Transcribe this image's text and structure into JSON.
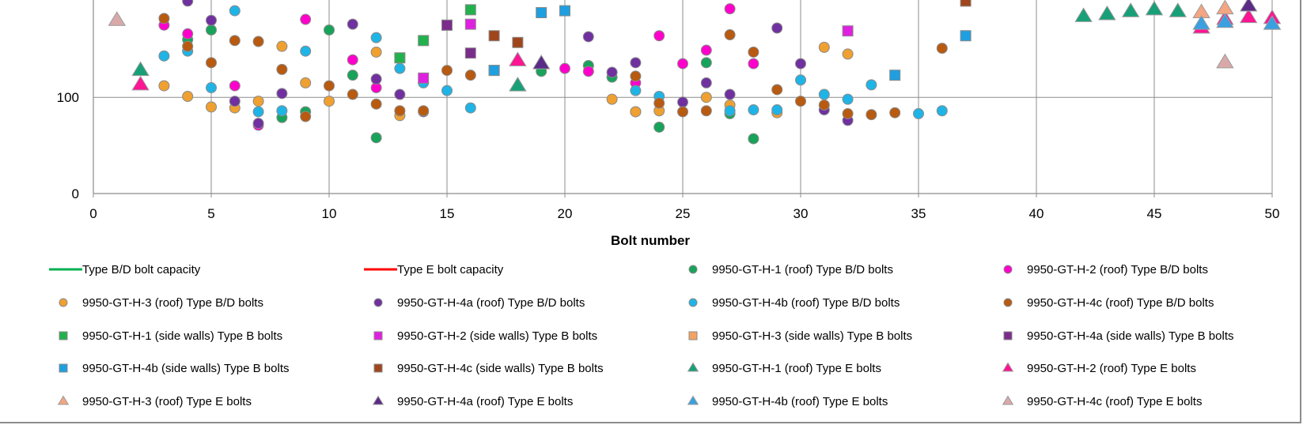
{
  "chart_data": {
    "type": "scatter",
    "title": "",
    "xlabel": "Bolt number",
    "ylabel": "",
    "xlim": [
      0,
      50
    ],
    "ylim_visible": [
      0,
      232
    ],
    "x_ticks": [
      "0",
      "5",
      "10",
      "15",
      "20",
      "25",
      "30",
      "35",
      "40",
      "45",
      "50"
    ],
    "y_ticks": [
      "0",
      "100"
    ],
    "grid": "on",
    "legend_position": "bottom",
    "series": [
      {
        "name": "Type B/D bolt capacity",
        "marker": "line",
        "color": "#00b050",
        "x": [],
        "y": []
      },
      {
        "name": "Type E bolt capacity",
        "marker": "line",
        "color": "#ff0000",
        "x": [],
        "y": []
      },
      {
        "name": "9950-GT-H-1 (roof) Type B/D bolts",
        "marker": "circle",
        "color": "#17a35a",
        "x": [
          4,
          5,
          8,
          9,
          10,
          11,
          12,
          19,
          21,
          22,
          23,
          24,
          26,
          27,
          28
        ],
        "y": [
          160,
          170,
          79,
          85,
          170,
          123,
          58,
          127,
          133,
          121,
          85,
          69,
          136,
          83,
          57
        ]
      },
      {
        "name": "9950-GT-H-2 (roof) Type B/D bolts",
        "marker": "circle",
        "color": "#ff00cc",
        "x": [
          3,
          4,
          6,
          7,
          9,
          11,
          12,
          20,
          21,
          23,
          24,
          25,
          26,
          27,
          28
        ],
        "y": [
          175,
          166,
          112,
          71,
          181,
          139,
          110,
          130,
          127,
          115,
          164,
          135,
          149,
          192,
          135
        ]
      },
      {
        "name": "9950-GT-H-3 (roof) Type B/D bolts",
        "marker": "circle",
        "color": "#f0a030",
        "x": [
          3,
          4,
          5,
          6,
          7,
          8,
          9,
          10,
          12,
          13,
          22,
          23,
          24,
          26,
          27,
          29,
          31,
          32
        ],
        "y": [
          112,
          101,
          90,
          89,
          96,
          153,
          115,
          96,
          147,
          81,
          98,
          85,
          86,
          100,
          92,
          84,
          152,
          145
        ]
      },
      {
        "name": "9950-GT-H-4a (roof) Type B/D bolts",
        "marker": "circle",
        "color": "#7030a0",
        "x": [
          4,
          5,
          6,
          7,
          8,
          11,
          12,
          13,
          14,
          21,
          22,
          23,
          25,
          26,
          27,
          29,
          30,
          31,
          32
        ],
        "y": [
          200,
          180,
          96,
          73,
          104,
          176,
          119,
          103,
          85,
          163,
          126,
          136,
          95,
          115,
          103,
          172,
          135,
          87,
          76
        ]
      },
      {
        "name": "9950-GT-H-4b (roof) Type B/D bolts",
        "marker": "circle",
        "color": "#1fb4e6",
        "x": [
          3,
          4,
          5,
          6,
          7,
          8,
          9,
          12,
          13,
          14,
          15,
          16,
          23,
          24,
          27,
          28,
          29,
          30,
          31,
          32,
          33,
          35,
          36
        ],
        "y": [
          143,
          148,
          110,
          190,
          85,
          86,
          148,
          162,
          130,
          115,
          107,
          89,
          107,
          101,
          86,
          87,
          87,
          118,
          103,
          98,
          113,
          83,
          86
        ]
      },
      {
        "name": "9950-GT-H-4c (roof) Type B/D bolts",
        "marker": "circle",
        "color": "#b85a10",
        "x": [
          3,
          4,
          5,
          6,
          7,
          8,
          9,
          10,
          11,
          12,
          13,
          14,
          15,
          16,
          23,
          24,
          25,
          26,
          27,
          28,
          29,
          30,
          31,
          32,
          33,
          34,
          36
        ],
        "y": [
          182,
          153,
          136,
          159,
          158,
          129,
          80,
          112,
          103,
          93,
          86,
          86,
          128,
          123,
          122,
          94,
          85,
          86,
          165,
          147,
          108,
          96,
          92,
          83,
          82,
          84,
          151
        ]
      },
      {
        "name": "9950-GT-H-1  (side walls) Type B bolts",
        "marker": "square",
        "color": "#22b14c",
        "x": [
          13,
          14,
          16
        ],
        "y": [
          141,
          159,
          191
        ]
      },
      {
        "name": "9950-GT-H-2 (side walls) Type B bolts",
        "marker": "square",
        "color": "#e020e0",
        "x": [
          14,
          16,
          32
        ],
        "y": [
          120,
          176,
          169
        ]
      },
      {
        "name": "9950-GT-H-3 (side walls) Type B bolts",
        "marker": "square",
        "color": "#f4a261",
        "x": [
          15,
          17
        ],
        "y": [
          175,
          128
        ]
      },
      {
        "name": "9950-GT-H-4a (side walls) Type B bolts",
        "marker": "square",
        "color": "#7b2d8b",
        "x": [
          15,
          16
        ],
        "y": [
          175,
          146
        ]
      },
      {
        "name": "9950-GT-H-4b (side walls) Type B bolts",
        "marker": "square",
        "color": "#1f9fe0",
        "x": [
          17,
          19,
          20,
          34,
          37
        ],
        "y": [
          128,
          188,
          190,
          123,
          164
        ]
      },
      {
        "name": "9950-GT-H-4c (side walls) Type B bolts",
        "marker": "square",
        "color": "#a0461c",
        "x": [
          17,
          18,
          37
        ],
        "y": [
          164,
          157,
          200
        ]
      },
      {
        "name": "9950-GT-H-1  (roof) Type E bolts",
        "marker": "triangle",
        "color": "#17a077",
        "x": [
          2,
          18,
          42,
          43,
          44,
          45,
          46,
          50
        ],
        "y": [
          128,
          112,
          184,
          186,
          189,
          191,
          189,
          176
        ]
      },
      {
        "name": "9950-GT-H-2 (roof) Type E bolts",
        "marker": "triangle",
        "color": "#ff1493",
        "x": [
          2,
          18,
          47,
          48,
          49,
          50
        ],
        "y": [
          113,
          138,
          172,
          181,
          183,
          182
        ]
      },
      {
        "name": "9950-GT-H-3 (roof) Type E bolts",
        "marker": "triangle",
        "color": "#f4a582",
        "x": [
          47,
          48
        ],
        "y": [
          188,
          192
        ]
      },
      {
        "name": "9950-GT-H-4a (roof) Type E bolts",
        "marker": "triangle",
        "color": "#5b2a86",
        "x": [
          19,
          49
        ],
        "y": [
          135,
          195
        ]
      },
      {
        "name": "9950-GT-H-4b (roof) Type E bolts",
        "marker": "triangle",
        "color": "#3aa0e0",
        "x": [
          47,
          48,
          50
        ],
        "y": [
          176,
          178,
          176
        ]
      },
      {
        "name": "9950-GT-H-4c (roof) Type E bolts",
        "marker": "triangle",
        "color": "#d9a9a9",
        "x": [
          1,
          48
        ],
        "y": [
          180,
          136
        ]
      }
    ]
  }
}
